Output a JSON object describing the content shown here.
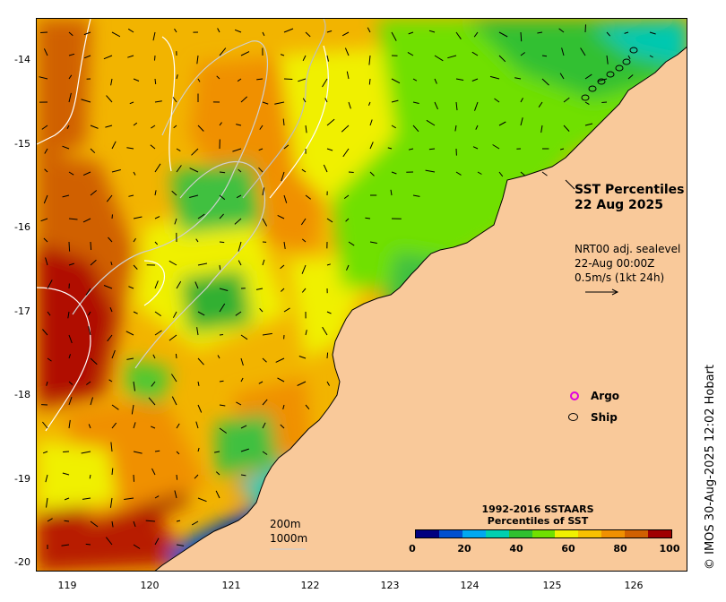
{
  "map": {
    "title_line1": "SST Percentiles",
    "title_line2": "22 Aug 2025",
    "current_info": {
      "line1": "NRT00 adj. sealevel",
      "line2": "22-Aug 00:00Z",
      "line3": "0.5m/s (1kt 24h)"
    },
    "legend": {
      "argo": "Argo",
      "ship": "Ship"
    },
    "colorbar": {
      "title_line1": "1992-2016 SSTAARS",
      "title_line2": "Percentiles of SST",
      "labels": [
        "0",
        "20",
        "40",
        "60",
        "80",
        "100"
      ],
      "colors": [
        "#00007f",
        "#0050d0",
        "#00a8f0",
        "#00d0b0",
        "#30c030",
        "#70e000",
        "#f0f000",
        "#f8c000",
        "#f09000",
        "#d06000",
        "#a00000"
      ]
    },
    "depth_legend": {
      "line1": "200m",
      "line2": "1000m"
    },
    "credit": "© IMOS 30-Aug-2025 12:02 Hobart",
    "y_axis_labels": [
      "-14",
      "-15",
      "-16",
      "-17",
      "-18",
      "-19",
      "-20"
    ],
    "x_axis_labels": [
      "119",
      "120",
      "121",
      "122",
      "123",
      "124",
      "125",
      "126"
    ],
    "land_color": "#f9c99a"
  }
}
